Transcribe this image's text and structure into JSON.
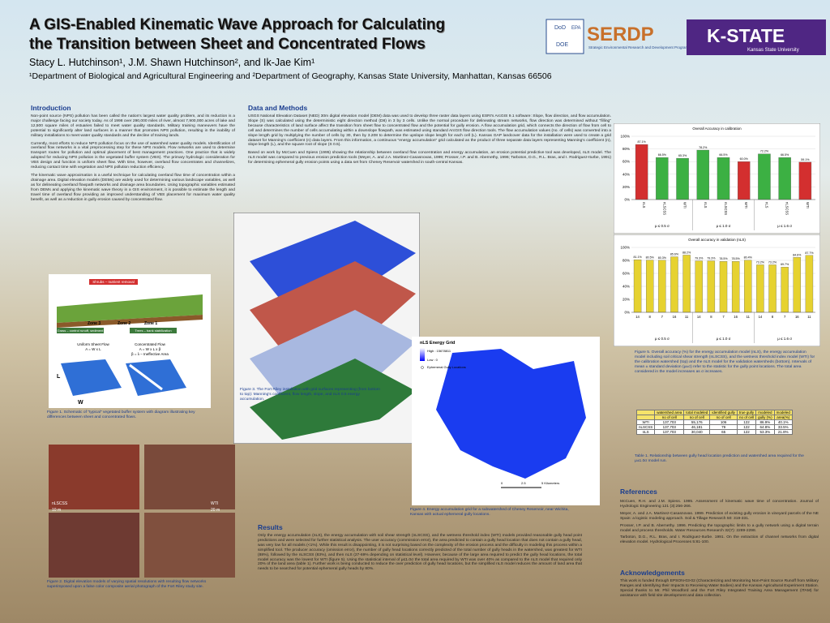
{
  "header": {
    "title_line1": "A GIS-Enabled Kinematic Wave Approach for Calculating",
    "title_line2": "the Transition between Sheet and Concentrated Flows",
    "authors": "Stacy L. Hutchinson¹, J.M. Shawn Hutchinson², and Ik-Jae Kim¹",
    "affiliations": "¹Department of Biological and Agricultural Engineering and ²Department of Geography, Kansas State University, Manhattan, Kansas  66506"
  },
  "logos": {
    "dod": "DoD",
    "epa": "EPA",
    "doe": "DOE",
    "serdp": "SERDP",
    "serdp_sub": "Strategic Environmental Research and Development Program",
    "kstate": "K-STATE",
    "kstate_sub": "Kansas State University"
  },
  "introduction": {
    "heading": "Introduction",
    "paragraphs": [
      "Non-point source (NPS) pollution has been called the nation's largest water quality problem, and its reduction is a major challenge facing our society today. As of 1998 over 290,000 miles of river, almost 7,900,000 acres of lake and 12,500 square miles of estuaries failed to meet water quality standards. Military training maneuvers have the potential to significantly alter land surfaces in a manner that promotes NPS pollution, resulting in the inability of military installations to meet water quality standards and the decline of training lands.",
      "Currently, most efforts to reduce NPS pollution focus on the use of watershed water quality models. Identification of overland flow networks is a vital preprocessing step for these NPS models. Flow networks are used to determine transport routes for pollution and optimal placement of best management practices. One practice that is widely adopted for reducing NPS pollution is the vegetated buffer system (VBS). The primary hydrologic consideration for VBS design and function is uniform sheet flow. With time, however, overland flow concentrates and channelizes, reducing contact time with vegetation and NPS pollution reduction efficiency.",
      "The kinematic wave approximation is a useful technique for calculating overland flow time of concentration within a drainage area. Digital elevation models (DEMs) are widely used for determining various landscape variables, as well as for delineating overland flowpath networks and drainage area boundaries. Using topographic variables estimated from DEMs and applying the kinematic wave theory in a GIS environment, it is possible to estimate the length and travel time of overland flow providing an improved understanding of VBS placement for maximum water quality benefit, as well as a reduction in gully erosion caused by concentrated flow."
    ]
  },
  "figure1": {
    "shrubs": "Shrubs – nutrient removal",
    "zone3": "Zone 3",
    "zone2": "Zone 2",
    "zone1": "Zone 1",
    "grass": "Grass – control runoff, sediment",
    "trees": "Trees – bank stabilization",
    "uniform": "Uniform Sheet Flow",
    "uniform_eq": "A = W x L",
    "concentrated": "Concentrated Flow",
    "concentrated_eq": "A = W x L x β",
    "beta": "β = λ – Ineffective Area",
    "l": "L",
    "w": "W",
    "caption": "Figure 1.  Schematic of \"typical\" vegetated buffer system with diagram illustrating key differences between sheet and concentrated flows."
  },
  "figure2": {
    "label_a": "10 m",
    "label_b": "20 m",
    "label_c": "nLSCSS",
    "label_d": "WTI",
    "caption": "Figure 2.  Digital elevation models of varying spatial resolutions with resulting flow networks superimposed upon a false color composite aerial photograph of the Fort Riley study site."
  },
  "data_methods": {
    "heading": "Data and Methods",
    "paragraphs": [
      "USGS National Elevation Dataset (NED) 30m digital elevation model (DEM) data was used to develop three raster data layers using ESRI's ArcGIS 9.1 software: Slope, flow direction, and flow accumulation. Slope (S) was calculated using the deterministic eight direction method (D8) in 3 by 3 cells. Unlike the normal procedure for delineating stream networks, flow direction was determined without \"filling\" because characteristics of land surface affect the transition from sheet flow to concentrated flow and the potential for gully erosion. A flow accumulation grid, which connects the direction of flow from cell to cell and determines the number of cells accumulating within a downslope flowpath, was estimated using standard ArcGIS flow direction tools. The flow accumulation values (no. of cells) was converted into a slope length grid by multiplying the number of cells by 30, then by 3.208 to determine the upslope slope length for each cell (L). Kansas GAP landcover data for the installation were used to create a grid dataset for Manning's coefficient (n) data layers. From this information, a continuous \"energy accumulation\" grid calculated as the product of three separate data layers representing Manning's coefficient (n), slope length (L), and the square root of slope (S 0.5).",
      "Based on work by McCuen and Spiess (1995) showing the relationship between overland flow concentration and energy accumulation, an erosion potential predictive tool was developed, nLS model. The nLS model was compared to previous erosion prediction tools (Meyer, A. and J.A. Martinez-Casasnovas, 1999; Prosser, I.P. and B. Abernethy, 1996; Tarboton, D.G., R.L. Bras, and I. Rodriguez-Iturbe, 1991) for determining ephemeral gully erosion points using a data set from Cheney Reservoir watershed in south-central Kansas."
    ]
  },
  "figure3": {
    "caption": "Figure 3.  The Fort Riley installation with grid surfaces representing (from bottom to top): Manning's coefficient, flow length, slope, and nLS 0.5 energy accumulation."
  },
  "figure4": {
    "legend_title": "nLS Energy Grid",
    "high": "High : 15678811",
    "low": "Low : 0",
    "gully": "Ephemeral Gully Locations",
    "scale_0": "0",
    "scale_1": "2.5",
    "scale_2": "5 Kilometers",
    "caption": "Figure 4.  Energy accumulation grid for a subwatershed of Cheney Reservoir, near Wichita, Kansas with actual ephemeral gully locations."
  },
  "results": {
    "heading": "Results",
    "text": "Only the energy accumulation (nLS), the energy accumulation with soil shear strength (nLSCSS), and the wetness threshold index (WTI) models provided reasonable gully head point predictions and were selected for further statistical analysis. The user accuracy (commission error), the area predicted to contain a gully head location that does not contain a gully head, was very low for all models (<1%). While this result is disappointing, it is not surprising based on the complexity of the erosion process and the difficulty in modeling this process within a simplified tool. The producer accuracy (omission error), the number of gully head locations correctly predicted of the total number of gully heads in the watershed, was greatest for WTI (88%), followed by the nLSCSS (83%), and then nLS (27-69% depending on statistical level). However, because of the large area required to predict the gully head locations, the total model accuracy was the lowest for WTI (figure 5). Using the statistical interval of μ≤1.0σ the total area required by WTI was over 40% as compared to the nLS model that required only 20% of the land area (table 1). Further work is being conducted to reduce the over prediction of gully head locations, but the simplified nLS model reduces the amount of land area that needs to be searched for potential ephemeral gully heads by 80%."
  },
  "charts": {
    "calibration": {
      "type": "bar",
      "title": "Overall Accuracy in calibration",
      "categories": [
        "nLS",
        "nLSCSS",
        "WTI",
        "nLS",
        "nLSCSS",
        "WTI",
        "nLS",
        "nLSCSS",
        "WTI"
      ],
      "groups": [
        "μ ≤ 0.5 σ",
        "μ ≤ 1.0 σ",
        "μ ≤ 1.6 σ"
      ],
      "values": [
        87.1,
        66.5,
        65.3,
        78.2,
        66.5,
        60.0,
        72.2,
        66.5,
        59.1
      ],
      "value_labels": [
        "87.1%",
        "66.5%",
        "65.3%",
        "78.2%",
        "66.5%",
        "60.0%",
        "72.2%",
        "66.5%",
        "59.1%"
      ],
      "colors": [
        "#d32f2f",
        "#3cb043",
        "#3cb043",
        "#3cb043",
        "#3cb043",
        "#d32f2f",
        "#3cb043",
        "#3cb043",
        "#d32f2f"
      ],
      "ylim": [
        0,
        100
      ],
      "yticks": [
        {
          "value": 0,
          "label": "0%"
        },
        {
          "value": 20,
          "label": "20%"
        },
        {
          "value": 40,
          "label": "40%"
        },
        {
          "value": 60,
          "label": "60%"
        },
        {
          "value": 80,
          "label": "80%"
        },
        {
          "value": 100,
          "label": "100%"
        }
      ]
    },
    "validation": {
      "type": "bar",
      "title": "Overall accuracy in validation (nLS)",
      "categories": [
        "14",
        "8",
        "7",
        "16",
        "11",
        "14",
        "8",
        "7",
        "16",
        "11",
        "14",
        "8",
        "7",
        "16",
        "11"
      ],
      "groups": [
        "μ ≤ 0.5 σ",
        "μ ≤ 1.0 σ",
        "μ ≤ 1.6 σ"
      ],
      "values": [
        81.1,
        80.5,
        80.3,
        85.6,
        88.2,
        79.3,
        79.3,
        78.5,
        78.5,
        80.4,
        73.2,
        73.2,
        69.7,
        84.6,
        87.7
      ],
      "value_labels": [
        "81.1%",
        "80.5%",
        "80.3%",
        "85.6%",
        "88.2%",
        "79.3%",
        "79.3%",
        "78.5%",
        "78.5%",
        "80.4%",
        "73.2%",
        "73.2%",
        "69.7%",
        "84.6%",
        "87.7%"
      ],
      "colors": [
        "#e6d230",
        "#e6d230",
        "#e6d230",
        "#e6d230",
        "#e6d230",
        "#e6d230",
        "#e6d230",
        "#e6d230",
        "#e6d230",
        "#e6d230",
        "#e6d230",
        "#e6d230",
        "#e6d230",
        "#e6d230",
        "#e6d230"
      ],
      "ylim": [
        0,
        100
      ],
      "yticks": [
        {
          "value": 0,
          "label": "0%"
        },
        {
          "value": 20,
          "label": "20%"
        },
        {
          "value": 40,
          "label": "40%"
        },
        {
          "value": 60,
          "label": "60%"
        },
        {
          "value": 80,
          "label": "80%"
        },
        {
          "value": 100,
          "label": "100%"
        }
      ]
    }
  },
  "figure5": {
    "caption": "Figure 5.  Overall accuracy (%) for the energy accumulation model (nLS), the energy accumulation model including soil critical shear strength (nLSCSS), and the wetness threshold index model (WTI) for the calibration watershed (top) and the nLS model for the validation watersheds (bottom). Intervals of mean ± standard deviation (μ±σ) refer to the statistic for the gully point locations. The total area considered in the model increases as σ increases."
  },
  "table": {
    "header1": [
      "",
      "watershed area",
      "total modeled",
      "identified gully",
      "true gully",
      "modeled",
      "modeled"
    ],
    "header2": [
      "",
      "no of cell",
      "no of cell",
      "no of cell",
      "no of cell",
      "gully (%)",
      "area(%)"
    ],
    "rows": [
      [
        "WTI",
        "137,703",
        "55,176",
        "106",
        "122",
        "86.9%",
        "40.1%"
      ],
      [
        "nLSCSS",
        "137,703",
        "46,181",
        "79",
        "122",
        "64.8%",
        "33.5%"
      ],
      [
        "nLS",
        "137,703",
        "30,040",
        "65",
        "122",
        "53.3%",
        "21.8%"
      ]
    ],
    "caption": "Table 1.  Relationship between gully head location prediction and watershed area required for the μ±1.0σ model run."
  },
  "references": {
    "heading": "References",
    "items": [
      "McCuen, R.H. and J.M. Spiess. 1995. Assessment of kinematic wave time of concentration. Journal of Hydrologic Engineering 121 (3):256-266.",
      "Meyer, A. and J.A. Martinez-Casasnovas. 1999. Prediction of existing gully erosion in vineyard parcels of the NE Spain: a logistic modeling approach. Soil & Tillage Research 50: 319-331.",
      "Prosser, I.P. and B. Abernethy. 1996. Predicting the topographic limits to a gully network using a digital terrain model and process thresholds. Water Resources Research 32(7): 2289-2298.",
      "Tarboton, D.G., R.L. Bras, and I. Rodriguez-Iturbe. 1991. On the extraction of channel networks from digital elevation model. Hydrological Processes 5:81-100."
    ]
  },
  "acknowledgements": {
    "heading": "Acknowledgements",
    "text": "This work is funded through EPSON-03-02 (Characterizing and Monitoring Non-Point Source Runoff from Military Ranges and Identifying their Impacts to Receiving Water Bodies) and the Kansas Agricultural Experiment Station. Special thanks to Mr. Phil Woodford and the Fort Riley Integrated Training Area Management (ITAM) for assistance with field site development and data collection."
  }
}
